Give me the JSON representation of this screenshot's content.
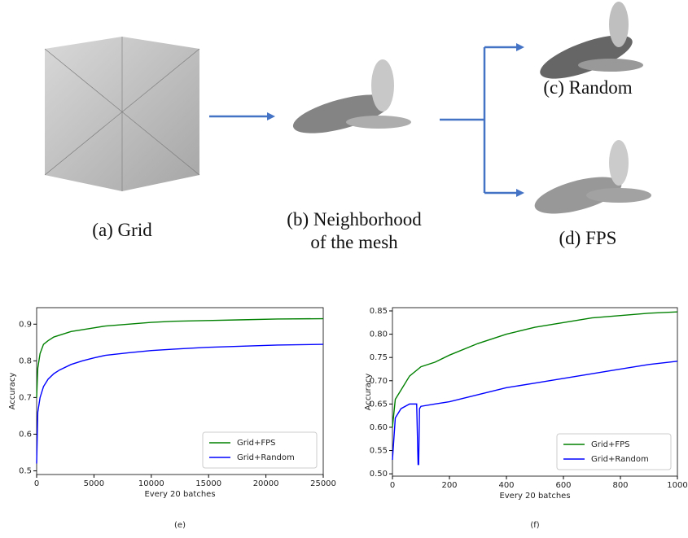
{
  "labels": {
    "a": "(a) Grid",
    "b": [
      "(b) Neighborhood",
      "of the mesh"
    ],
    "c": "(c) Random",
    "d": "(d) FPS"
  },
  "chart_data": [
    {
      "type": "line",
      "caption": "(e)",
      "xlabel": "Every 20 batches",
      "ylabel": "Accuracy",
      "xlim": [
        0,
        25000
      ],
      "xticks": [
        0,
        5000,
        10000,
        15000,
        20000,
        25000
      ],
      "ylim": [
        0.49,
        0.945
      ],
      "yticks": [
        0.5,
        0.6,
        0.7,
        0.8,
        0.9
      ],
      "legend": "lower right",
      "series": [
        {
          "name": "Grid+FPS",
          "color": "#008000",
          "x": [
            0,
            100,
            300,
            600,
            1000,
            1500,
            2000,
            3000,
            4000,
            5000,
            6000,
            8000,
            10000,
            12000,
            15000,
            18000,
            21000,
            25000
          ],
          "values": [
            0.7,
            0.78,
            0.82,
            0.845,
            0.855,
            0.865,
            0.87,
            0.88,
            0.885,
            0.89,
            0.895,
            0.9,
            0.905,
            0.908,
            0.91,
            0.912,
            0.914,
            0.915
          ]
        },
        {
          "name": "Grid+Random",
          "color": "#0000ff",
          "x": [
            0,
            100,
            300,
            600,
            1000,
            1500,
            2000,
            3000,
            4000,
            5000,
            6000,
            8000,
            10000,
            12000,
            15000,
            18000,
            21000,
            25000
          ],
          "values": [
            0.52,
            0.66,
            0.7,
            0.73,
            0.75,
            0.765,
            0.775,
            0.79,
            0.8,
            0.808,
            0.815,
            0.822,
            0.828,
            0.832,
            0.837,
            0.84,
            0.843,
            0.845
          ]
        }
      ]
    },
    {
      "type": "line",
      "caption": "(f)",
      "xlabel": "Every 20 batches",
      "ylabel": "Accuracy",
      "xlim": [
        0,
        1000
      ],
      "xticks": [
        0,
        200,
        400,
        600,
        800,
        1000
      ],
      "ylim": [
        0.495,
        0.857
      ],
      "yticks": [
        {
          "value": 0.5,
          "label": "0.50"
        },
        0.55,
        {
          "value": 0.6,
          "label": "0.60"
        },
        0.65,
        {
          "value": 0.7,
          "label": "0.70"
        },
        0.75,
        {
          "value": 0.8,
          "label": "0.80"
        },
        0.85
      ],
      "legend": "lower right",
      "series": [
        {
          "name": "Grid+FPS",
          "color": "#008000",
          "x": [
            0,
            10,
            30,
            60,
            100,
            150,
            200,
            300,
            400,
            500,
            600,
            700,
            800,
            900,
            1000
          ],
          "values": [
            0.6,
            0.66,
            0.68,
            0.71,
            0.73,
            0.74,
            0.755,
            0.78,
            0.8,
            0.815,
            0.825,
            0.835,
            0.84,
            0.845,
            0.848
          ]
        },
        {
          "name": "Grid+Random",
          "color": "#0000ff",
          "x": [
            0,
            10,
            30,
            60,
            85,
            90,
            92,
            95,
            100,
            150,
            200,
            300,
            400,
            500,
            600,
            700,
            800,
            900,
            1000
          ],
          "values": [
            0.53,
            0.62,
            0.64,
            0.65,
            0.65,
            0.52,
            0.52,
            0.64,
            0.645,
            0.65,
            0.655,
            0.67,
            0.685,
            0.695,
            0.705,
            0.715,
            0.725,
            0.735,
            0.742
          ]
        }
      ]
    }
  ]
}
